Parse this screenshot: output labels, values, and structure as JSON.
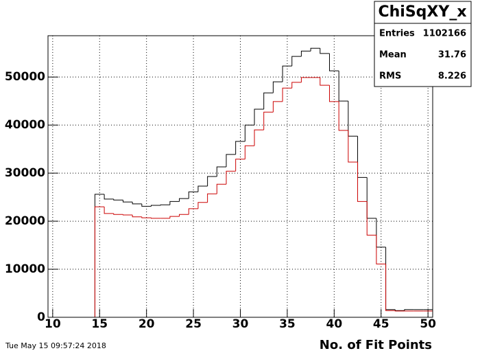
{
  "chart_data": {
    "type": "histogram",
    "bins": [
      9.5,
      10.5,
      11.5,
      12.5,
      13.5,
      14.5,
      15.5,
      16.5,
      17.5,
      18.5,
      19.5,
      20.5,
      21.5,
      22.5,
      23.5,
      24.5,
      25.5,
      26.5,
      27.5,
      28.5,
      29.5,
      30.5,
      31.5,
      32.5,
      33.5,
      34.5,
      35.5,
      36.5,
      37.5,
      38.5,
      39.5,
      40.5,
      41.5,
      42.5,
      43.5,
      44.5,
      45.5,
      46.5,
      47.5,
      48.5,
      49.5,
      50.5
    ],
    "series": [
      {
        "color": "#000000",
        "values": [
          0,
          0,
          0,
          0,
          0,
          25600,
          24600,
          24400,
          24000,
          23600,
          23100,
          23300,
          23400,
          24100,
          24700,
          26100,
          27300,
          29300,
          31300,
          33900,
          36600,
          40000,
          43300,
          46700,
          49000,
          52300,
          54300,
          55400,
          56000,
          54900,
          51300,
          45000,
          37700,
          29100,
          20600,
          14600,
          1600,
          1400,
          1600,
          1600,
          1600
        ]
      },
      {
        "color": "#cc0000",
        "values": [
          0,
          0,
          0,
          0,
          0,
          23000,
          21600,
          21400,
          21300,
          20900,
          20700,
          20600,
          20600,
          21000,
          21400,
          22600,
          23900,
          25700,
          27700,
          30400,
          32900,
          35700,
          39000,
          42700,
          44900,
          47700,
          48900,
          49900,
          49900,
          48300,
          44900,
          38900,
          32300,
          24100,
          17100,
          11100,
          1400,
          1300,
          1300,
          1300,
          1300
        ]
      }
    ],
    "xlim": [
      9.5,
      50.5
    ],
    "xticks": [
      10,
      15,
      20,
      25,
      30,
      35,
      40,
      45,
      50
    ],
    "ylim": [
      0,
      58600
    ],
    "yticks": [
      0,
      10000,
      20000,
      30000,
      40000,
      50000
    ],
    "grid": true,
    "x_label": "No. of Fit Points",
    "stats": {
      "title": "ChiSqXY_x",
      "rows": [
        [
          "Entries",
          "1102166"
        ],
        [
          "Mean",
          "31.76"
        ],
        [
          "RMS",
          "8.226"
        ]
      ]
    },
    "timestamp": "Tue May 15 09:57:24 2018"
  }
}
